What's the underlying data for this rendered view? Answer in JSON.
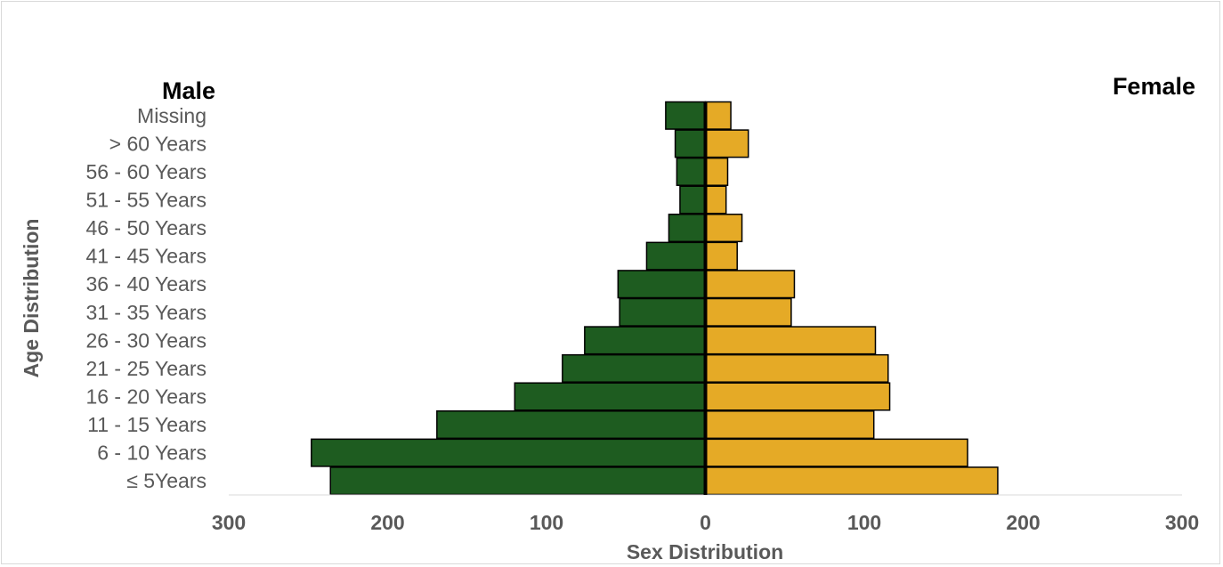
{
  "chart_data": {
    "type": "bar",
    "orientation": "horizontal",
    "layout": "population-pyramid",
    "ylabel": "Age Distribution",
    "xlabel": "Sex Distribution",
    "xlim": [
      -300,
      300
    ],
    "x_ticks": [
      -300,
      -200,
      -100,
      0,
      100,
      200,
      300
    ],
    "x_tick_labels": [
      "300",
      "200",
      "100",
      "0",
      "100",
      "200",
      "300"
    ],
    "side_labels": {
      "left": "Male",
      "right": "Female"
    },
    "categories": [
      "Missing",
      "> 60 Years",
      "56 - 60 Years",
      "51 - 55 Years",
      "46 - 50 Years",
      "41 - 45 Years",
      "36 - 40 Years",
      "31 - 35 Years",
      "26 - 30 Years",
      "21 - 25 Years",
      "16 - 20 Years",
      "11 - 15 Years",
      "6 - 10 Years",
      "≤ 5Years"
    ],
    "series": [
      {
        "side": "left",
        "color": "#1e5c20",
        "values": [
          25,
          19,
          18,
          16,
          23,
          37,
          55,
          54,
          76,
          90,
          120,
          169,
          248,
          236
        ]
      },
      {
        "side": "right",
        "color": "#e5aa26",
        "values": [
          16,
          27,
          14,
          13,
          23,
          20,
          56,
          54,
          107,
          115,
          116,
          106,
          165,
          184
        ]
      }
    ],
    "grid": false,
    "legend": "none"
  }
}
